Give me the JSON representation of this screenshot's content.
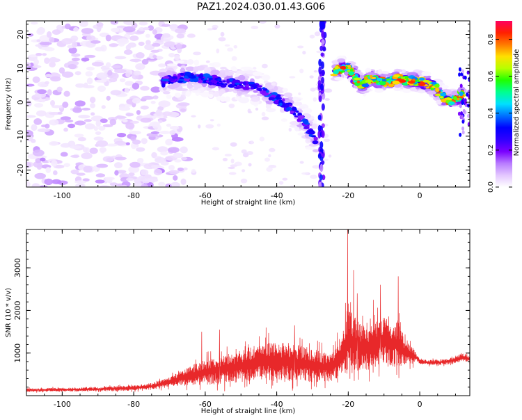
{
  "title": "PAZ1.2024.030.01.43.G06",
  "chart_data": [
    {
      "type": "heatmap",
      "xlabel": "Height of straight line (km)",
      "ylabel": "Frequency (Hz)",
      "xlim": [
        -110,
        14
      ],
      "ylim": [
        -25,
        24
      ],
      "x_ticks": [
        -100,
        -80,
        -60,
        -40,
        -20,
        0
      ],
      "y_ticks": [
        -20,
        -10,
        0,
        10,
        20
      ],
      "colorbar": {
        "label": "Normalized spectral amplitude",
        "range": [
          0,
          0.9
        ],
        "ticks": [
          0.0,
          0.2,
          0.4,
          0.6,
          0.8
        ],
        "colors": [
          "#ffffff",
          "#e3c6ff",
          "#b87bff",
          "#7a00ff",
          "#3000ff",
          "#0000ff",
          "#0070ff",
          "#00e0ff",
          "#00ff90",
          "#20ff00",
          "#b8ff00",
          "#ffe000",
          "#ff7a00",
          "#ff2000",
          "#ff0060"
        ]
      },
      "ridges": [
        {
          "segment": "main",
          "x": [
            -72,
            -68,
            -64,
            -60,
            -56,
            -52,
            -48,
            -44,
            -40,
            -36,
            -32,
            -29
          ],
          "y": [
            6,
            7,
            7.5,
            7,
            6,
            5.5,
            5,
            3.5,
            1,
            -2,
            -6,
            -12
          ],
          "peak": 0.38
        },
        {
          "segment": "right",
          "x": [
            -24,
            -22,
            -20,
            -18,
            -16,
            -14,
            -12,
            -10,
            -8,
            -6,
            -4,
            -2,
            0,
            2,
            4,
            6,
            8,
            10,
            12
          ],
          "y": [
            9,
            10,
            10.5,
            7,
            5,
            7,
            6.5,
            6,
            6,
            7,
            6.5,
            6.5,
            6,
            5.5,
            5,
            2,
            0.5,
            1,
            2.5
          ],
          "peak": 0.85
        }
      ]
    },
    {
      "type": "line",
      "xlabel": "Height of straight line (km)",
      "ylabel": "SNR (10 * v/v)",
      "xlim": [
        -110,
        14
      ],
      "ylim": [
        0,
        3900
      ],
      "x_ticks": [
        -100,
        -80,
        -60,
        -40,
        -20,
        0
      ],
      "y_ticks": [
        1000,
        2000,
        3000
      ],
      "color": "#e8282a",
      "envelope": {
        "x": [
          -110,
          -90,
          -80,
          -75,
          -70,
          -65,
          -60,
          -55,
          -50,
          -45,
          -40,
          -35,
          -30,
          -25,
          -22,
          -20,
          -18,
          -15,
          -12,
          -10,
          -8,
          -6,
          -4,
          -2,
          -1,
          0,
          2,
          5,
          8,
          10,
          12,
          14
        ],
        "mean": [
          130,
          150,
          180,
          220,
          320,
          450,
          560,
          620,
          700,
          780,
          820,
          780,
          720,
          650,
          900,
          1300,
          1200,
          1100,
          1250,
          1300,
          1150,
          1250,
          1000,
          950,
          900,
          800,
          780,
          780,
          800,
          850,
          900,
          850
        ],
        "amp": [
          60,
          70,
          90,
          110,
          160,
          300,
          450,
          500,
          550,
          600,
          650,
          620,
          580,
          450,
          700,
          1100,
          900,
          750,
          800,
          850,
          700,
          800,
          400,
          300,
          120,
          80,
          90,
          90,
          100,
          120,
          130,
          110
        ]
      },
      "peaks": [
        {
          "x": -20.2,
          "y": 3900
        },
        {
          "x": -18.5,
          "y": 2950
        },
        {
          "x": -17.5,
          "y": 2400
        },
        {
          "x": -13,
          "y": 2250
        },
        {
          "x": -11,
          "y": 2600
        },
        {
          "x": -6,
          "y": 2800
        },
        {
          "x": -43,
          "y": 1600
        },
        {
          "x": -35,
          "y": 1650
        },
        {
          "x": -56,
          "y": 1550
        },
        {
          "x": -61,
          "y": 1500
        }
      ]
    }
  ]
}
